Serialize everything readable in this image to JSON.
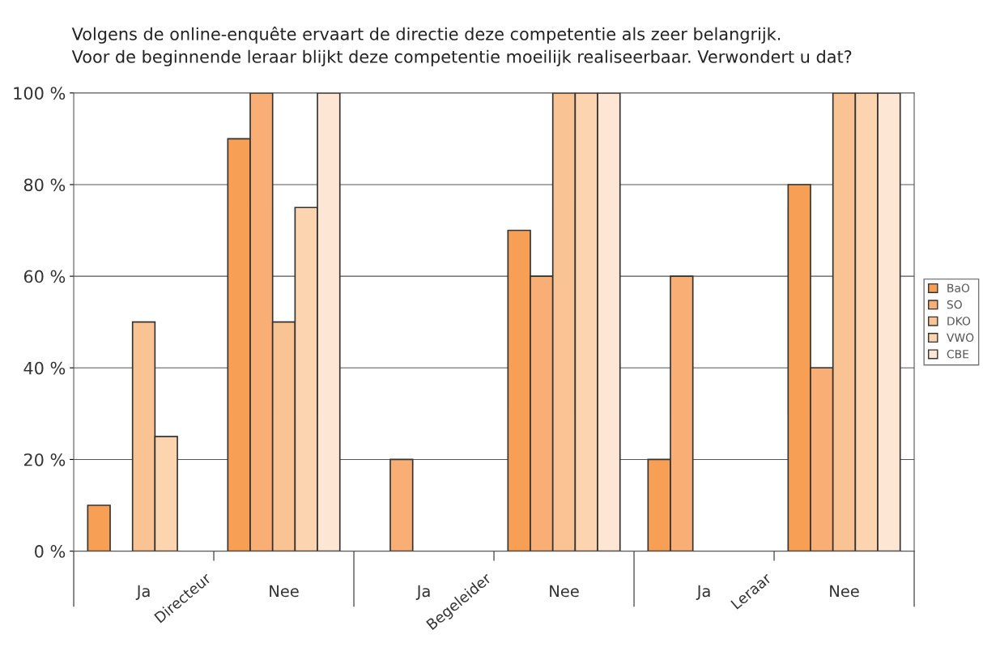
{
  "chart_data": {
    "type": "bar",
    "title": "Volgens de online-enquête ervaart de directie deze competentie als zeer belangrijk.\nVoor de beginnende leraar blijkt deze competentie moeilijk realiseerbaar. Verwondert u dat?",
    "categories": [
      "Ja",
      "Nee",
      "Ja",
      "Nee",
      "Ja",
      "Nee"
    ],
    "series": [
      {
        "name": "BaO",
        "color": "#f7a055",
        "values": [
          10,
          90,
          null,
          70,
          20,
          80
        ]
      },
      {
        "name": "SO",
        "color": "#f8ae74",
        "values": [
          null,
          100,
          20,
          60,
          60,
          40
        ]
      },
      {
        "name": "DKO",
        "color": "#fac393",
        "values": [
          50,
          50,
          null,
          100,
          null,
          100
        ]
      },
      {
        "name": "VWO",
        "color": "#fcd5b0",
        "values": [
          25,
          75,
          null,
          100,
          null,
          100
        ]
      },
      {
        "name": "CBE",
        "color": "#fde6d3",
        "values": [
          null,
          100,
          null,
          100,
          null,
          100
        ]
      }
    ],
    "annotations": [
      "Directeur",
      "Begeleider",
      "Leraar"
    ],
    "ylim": [
      0,
      100
    ],
    "yticks": [
      {
        "value": 0,
        "label": "0 %"
      },
      {
        "value": 20,
        "label": "20 %"
      },
      {
        "value": 40,
        "label": "40 %"
      },
      {
        "value": 60,
        "label": "60 %"
      },
      {
        "value": 80,
        "label": "80 %"
      },
      {
        "value": 100,
        "label": "100 %"
      }
    ],
    "grid": "y",
    "legend": "right"
  }
}
